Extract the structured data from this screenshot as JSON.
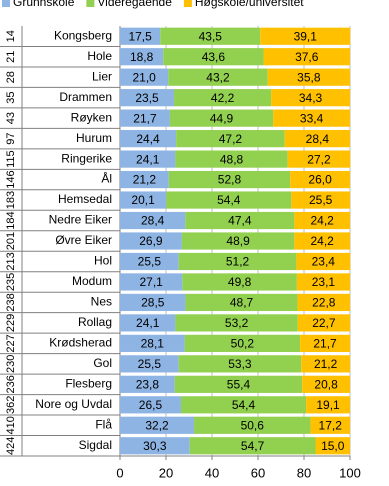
{
  "chart_data": {
    "type": "bar",
    "orientation": "horizontal",
    "stacked": true,
    "categories": [
      "Kongsberg",
      "Hole",
      "Lier",
      "Drammen",
      "Røyken",
      "Hurum",
      "Ringerike",
      "Ål",
      "Hemsedal",
      "Nedre Eiker",
      "Øvre Eiker",
      "Hol",
      "Modum",
      "Nes",
      "Rollag",
      "Krødsherad",
      "Gol",
      "Flesberg",
      "Nore og Uvdal",
      "Flå",
      "Sigdal"
    ],
    "row_codes": [
      "14",
      "21",
      "28",
      "35",
      "43",
      "97",
      "115",
      "146",
      "183",
      "184",
      "201",
      "213",
      "235",
      "238",
      "229",
      "227",
      "230",
      "236",
      "362",
      "410",
      "424"
    ],
    "series": [
      {
        "name": "Grunnskole",
        "color": "#8eb4e3",
        "values": [
          17.5,
          18.8,
          21.0,
          23.5,
          21.7,
          24.4,
          24.1,
          21.2,
          20.1,
          28.4,
          26.9,
          25.5,
          27.1,
          28.5,
          24.1,
          28.1,
          25.5,
          23.8,
          26.5,
          32.2,
          30.3
        ],
        "value_labels": [
          "17,5",
          "18,8",
          "21,0",
          "23,5",
          "21,7",
          "24,4",
          "24,1",
          "21,2",
          "20,1",
          "28,4",
          "26,9",
          "25,5",
          "27,1",
          "28,5",
          "24,1",
          "28,1",
          "25,5",
          "23,8",
          "26,5",
          "32,2",
          "30,3"
        ]
      },
      {
        "name": "Videregående",
        "color": "#92d050",
        "values": [
          43.5,
          43.6,
          43.2,
          42.2,
          44.9,
          47.2,
          48.8,
          52.8,
          54.4,
          47.4,
          48.9,
          51.2,
          49.8,
          48.7,
          53.2,
          50.2,
          53.3,
          55.4,
          54.4,
          50.6,
          54.7
        ],
        "value_labels": [
          "43,5",
          "43,6",
          "43,2",
          "42,2",
          "44,9",
          "47,2",
          "48,8",
          "52,8",
          "54,4",
          "47,4",
          "48,9",
          "51,2",
          "49,8",
          "48,7",
          "53,2",
          "50,2",
          "53,3",
          "55,4",
          "54,4",
          "50,6",
          "54,7"
        ]
      },
      {
        "name": "Høgskole/universitet",
        "color": "#ffc000",
        "values": [
          39.1,
          37.6,
          35.8,
          34.3,
          33.4,
          28.4,
          27.2,
          26.0,
          25.5,
          24.2,
          24.2,
          23.4,
          23.1,
          22.8,
          22.7,
          21.7,
          21.2,
          20.8,
          19.1,
          17.2,
          15.0
        ],
        "value_labels": [
          "39,1",
          "37,6",
          "35,8",
          "34,3",
          "33,4",
          "28,4",
          "27,2",
          "26,0",
          "25,5",
          "24,2",
          "24,2",
          "23,4",
          "23,1",
          "22,8",
          "22,7",
          "21,7",
          "21,2",
          "20,8",
          "19,1",
          "17,2",
          "15,0"
        ]
      }
    ],
    "xlim": [
      0,
      100
    ],
    "xticks": [
      0,
      20,
      40,
      60,
      80,
      100
    ],
    "grid": true
  }
}
